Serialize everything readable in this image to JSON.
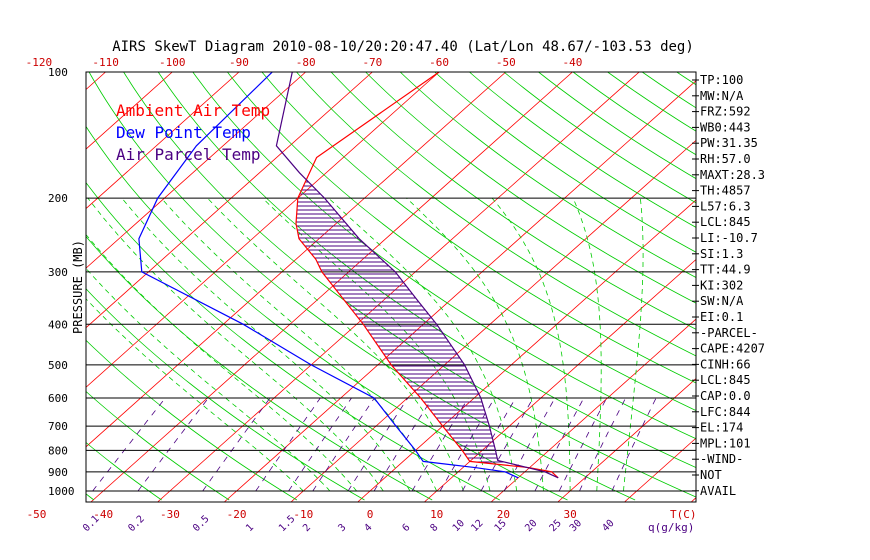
{
  "colors": {
    "ambient": "#ff0000",
    "dewpoint": "#0000ff",
    "parcel": "#4b0082",
    "isotherm": "#ff0000",
    "dry_adiabat": "#00cc00",
    "moist_adiabat": "#00cc00",
    "mixing_ratio": "#4b0082",
    "isobar": "#000000",
    "cape_hatch": "#4b0082"
  },
  "chart_data": {
    "type": "line",
    "title": "AIRS SkewT Diagram 2010-08-10/20:20:47.40 (Lat/Lon 48.67/-103.53 deg)",
    "ylabel": "PRESSURE (MB)",
    "temp_axis_unit": "T(C)",
    "mixing_axis_unit": "q(g/kg)",
    "legend": [
      "Ambient Air Temp",
      "Dew Point Temp",
      "Air Parcel Temp"
    ],
    "legend_placement": "top-left",
    "pressure_ticks": [
      100,
      200,
      300,
      400,
      500,
      600,
      700,
      800,
      900,
      1000
    ],
    "top_temp_ticks": [
      -120,
      -110,
      -100,
      -90,
      -80,
      -70,
      -60,
      -50,
      -40
    ],
    "bottom_temp_ticks": [
      -50,
      -40,
      -30,
      -20,
      -10,
      0,
      10,
      20,
      30
    ],
    "bottom_mixing_ticks": [
      "0.1",
      "0.2",
      "0.5",
      "1",
      "1.5",
      "2",
      "3",
      "4",
      "6",
      "8",
      "10",
      "12",
      "15",
      "20",
      "25",
      "30",
      "40"
    ],
    "series": [
      {
        "name": "Ambient Air Temp",
        "pressure": [
          100,
          160,
          200,
          230,
          250,
          280,
          300,
          400,
          500,
          600,
          700,
          800,
          850,
          880,
          900,
          930
        ],
        "temp_c": [
          -60,
          -64,
          -60,
          -56,
          -53,
          -47,
          -44,
          -29,
          -18,
          -8,
          0,
          7,
          10,
          20,
          24,
          26
        ]
      },
      {
        "name": "Dew Point Temp",
        "pressure": [
          100,
          150,
          200,
          250,
          300,
          400,
          500,
          600,
          700,
          800,
          850,
          880,
          900,
          930
        ],
        "temp_c": [
          -85,
          -84,
          -81,
          -77,
          -71,
          -47,
          -30,
          -15,
          -7,
          0,
          3,
          12,
          17,
          20
        ]
      },
      {
        "name": "Air Parcel Temp",
        "pressure": [
          100,
          150,
          174,
          200,
          250,
          300,
          350,
          400,
          500,
          600,
          700,
          800,
          845,
          900,
          930
        ],
        "temp_c": [
          -82,
          -72,
          -64,
          -56,
          -44,
          -33,
          -25,
          -18,
          -7,
          1,
          7,
          12,
          14,
          23,
          26
        ]
      }
    ],
    "isotherms_c": [
      -120,
      -110,
      -100,
      -90,
      -80,
      -70,
      -60,
      -50,
      -40,
      -30,
      -20,
      -10,
      0,
      10,
      20,
      30,
      40,
      50,
      60
    ],
    "mixing_ratios_gkg": [
      0.1,
      0.2,
      0.5,
      1,
      1.5,
      2,
      3,
      4,
      6,
      8,
      10,
      12,
      15,
      20,
      25,
      30,
      40
    ]
  },
  "indices": [
    "TP:100",
    "MW:N/A",
    "FRZ:592",
    "WB0:443",
    "PW:31.35",
    "RH:57.0",
    "MAXT:28.3",
    "TH:4857",
    "L57:6.3",
    "LCL:845",
    "LI:-10.7",
    "SI:1.3",
    "TT:44.9",
    "KI:302",
    "SW:N/A",
    "EI:0.1",
    "-PARCEL-",
    "CAPE:4207",
    "CINH:66",
    "LCL:845",
    "CAP:0.0",
    "LFC:844",
    "EL:174",
    "MPL:101",
    "-WIND-",
    "NOT",
    "AVAIL"
  ]
}
